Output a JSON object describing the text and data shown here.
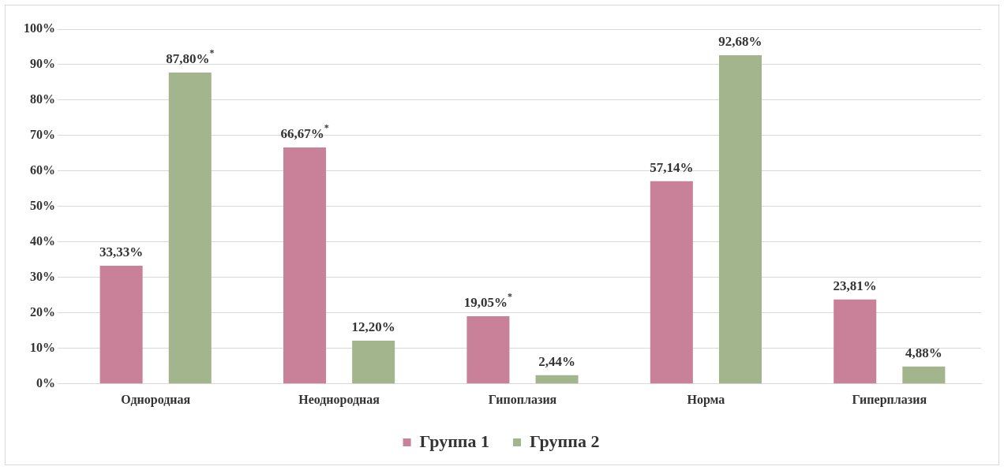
{
  "chart_data": {
    "type": "bar",
    "categories": [
      "Однородная",
      "Неоднородная",
      "Гипоплазия",
      "Норма",
      "Гиперплазия"
    ],
    "series": [
      {
        "name": "Группа 1",
        "color": "#c9819a",
        "values": [
          33.33,
          66.67,
          19.05,
          57.14,
          23.81
        ],
        "value_labels": [
          "33,33%",
          "66,67%$^{*}$",
          "19,05%$^{*}$",
          "57,14%",
          "23,81%"
        ]
      },
      {
        "name": "Группа 2",
        "color": "#a3b58c",
        "values": [
          87.8,
          12.2,
          2.44,
          92.68,
          4.88
        ],
        "value_labels": [
          "87,80%$^{*}$",
          "12,20%",
          "2,44%",
          "92,68%",
          "4,88%"
        ]
      }
    ],
    "ylim": [
      0,
      100
    ],
    "yticks": [
      {
        "value": 0,
        "label": "0%"
      },
      {
        "value": 10,
        "label": "10%"
      },
      {
        "value": 20,
        "label": "20%"
      },
      {
        "value": 30,
        "label": "30%"
      },
      {
        "value": 40,
        "label": "40%"
      },
      {
        "value": 50,
        "label": "50%"
      },
      {
        "value": 60,
        "label": "60%"
      },
      {
        "value": 70,
        "label": "70%"
      },
      {
        "value": 80,
        "label": "80%"
      },
      {
        "value": 90,
        "label": "90%"
      },
      {
        "value": 100,
        "label": "100%"
      }
    ],
    "grid": "y",
    "legend": "bottom"
  }
}
